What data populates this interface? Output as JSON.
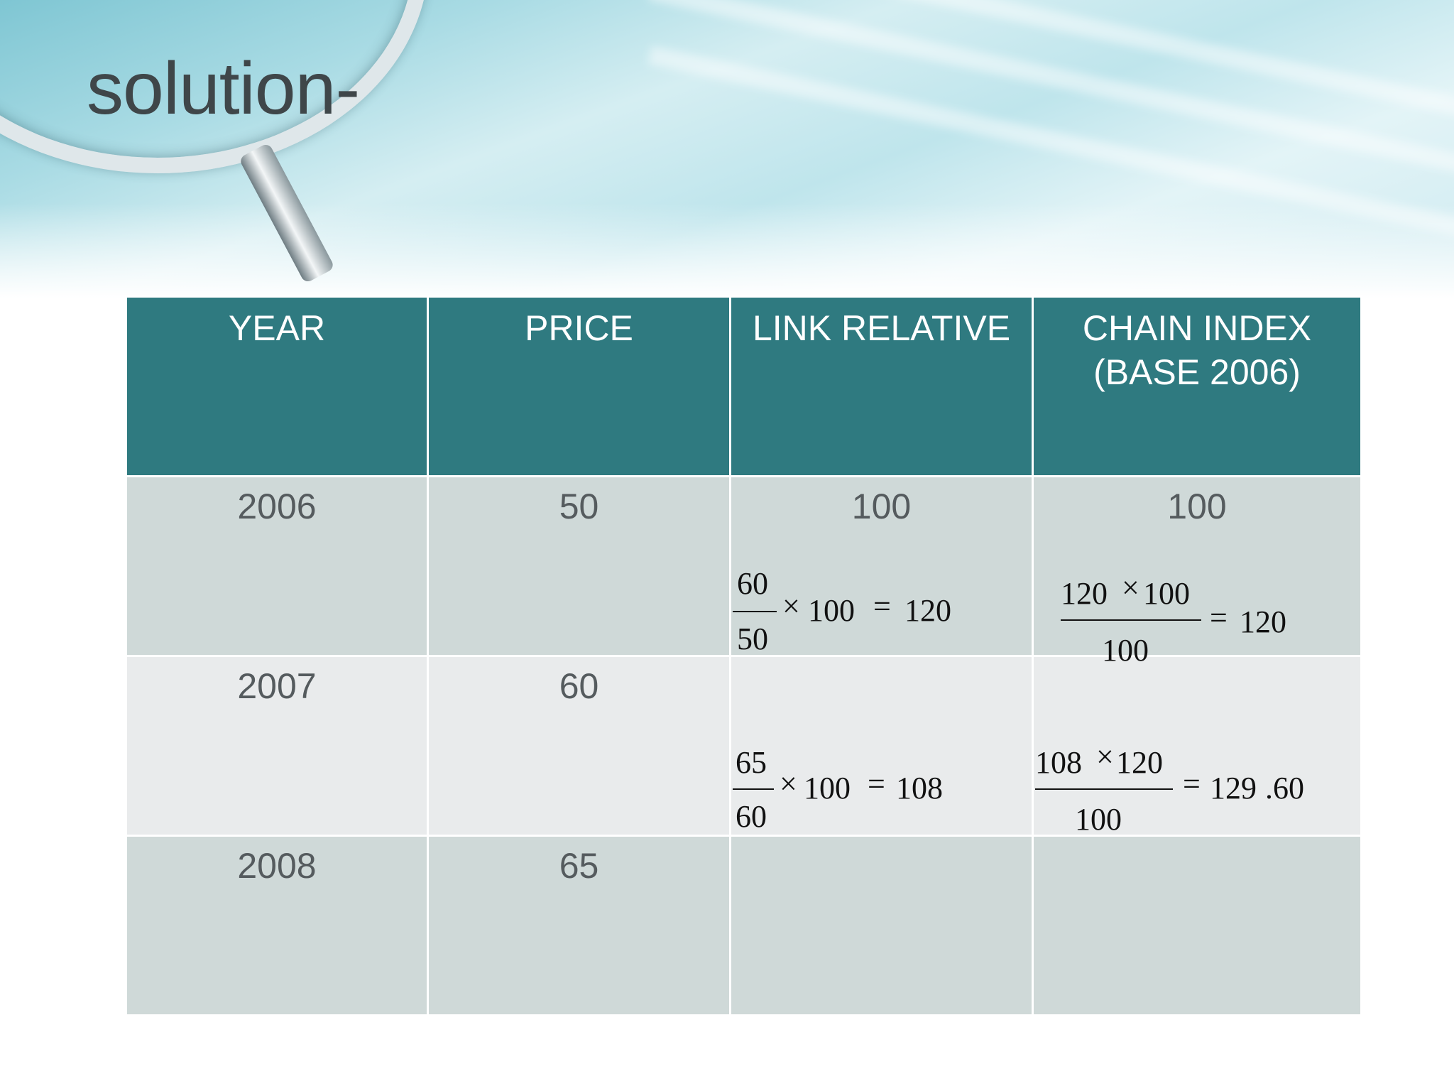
{
  "slide": {
    "title": "solution-"
  },
  "table": {
    "headers": [
      "YEAR",
      "PRICE",
      "LINK RELATIVE",
      "CHAIN INDEX (BASE 2006)"
    ],
    "header_chain_line1": "CHAIN INDEX",
    "header_chain_line2": "(BASE 2006)",
    "rows": [
      {
        "year": "2006",
        "price": "50",
        "link_relative": "100",
        "chain_index": "100"
      },
      {
        "year": "2007",
        "price": "60",
        "link_relative": "",
        "chain_index": ""
      },
      {
        "year": "2008",
        "price": "65",
        "link_relative": "",
        "chain_index": ""
      }
    ]
  },
  "formulas": {
    "link_2007": {
      "numerator": "60",
      "denominator": "50",
      "times": "×",
      "factor": "100",
      "equals": "=",
      "result": "120"
    },
    "chain_2007": {
      "numerator_a": "120",
      "times": "×",
      "numerator_b": "100",
      "denominator": "100",
      "equals": "=",
      "result": "120"
    },
    "link_2008": {
      "numerator": "65",
      "denominator": "60",
      "times": "×",
      "factor": "100",
      "equals": "=",
      "result": "108"
    },
    "chain_2008": {
      "numerator_a": "108",
      "times": "×",
      "numerator_b": "120",
      "denominator": "100",
      "equals": "=",
      "result_int": "129",
      "result_dec": ".60"
    }
  },
  "colors": {
    "header_bg": "#2f7a80",
    "row_dark": "#cfd9d8",
    "row_light": "#e9ebec",
    "title": "#3f4649"
  }
}
